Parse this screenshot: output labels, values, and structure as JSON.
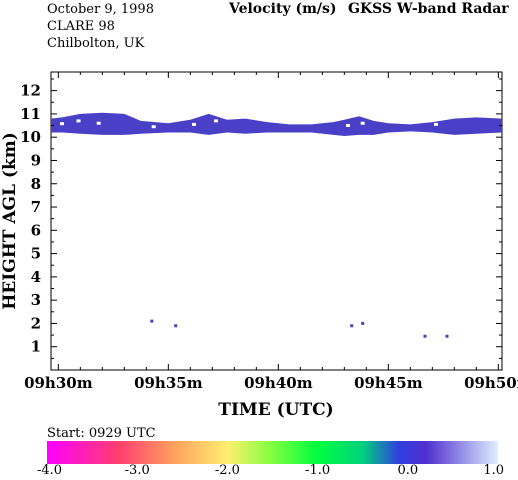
{
  "header": {
    "date": "October   9, 1998",
    "campaign": "CLARE 98",
    "site": "Chilbolton, UK",
    "quantity": "Velocity (m/s)",
    "instrument": "GKSS  W-band Radar"
  },
  "colorbar": {
    "start_label": "Start: 0929 UTC",
    "tick_labels": [
      "-4.0",
      "-3.0",
      "-2.0",
      "-1.0",
      "0.0",
      "1.0"
    ],
    "range": [
      -4.0,
      1.0
    ],
    "stops": [
      {
        "v": -4.0,
        "color": "#ff00ff"
      },
      {
        "v": -3.2,
        "color": "#ff3f6f"
      },
      {
        "v": -2.6,
        "color": "#ff9f5f"
      },
      {
        "v": -2.0,
        "color": "#ffef6f"
      },
      {
        "v": -1.5,
        "color": "#7fff3f"
      },
      {
        "v": -1.0,
        "color": "#00ff3f"
      },
      {
        "v": -0.5,
        "color": "#00cf7f"
      },
      {
        "v": -0.1,
        "color": "#2f3fdf"
      },
      {
        "v": 0.2,
        "color": "#4f2fcf"
      },
      {
        "v": 1.0,
        "color": "#dfefff"
      }
    ]
  },
  "chart_data": {
    "type": "heatmap",
    "title": "Velocity (m/s)",
    "xlabel": "TIME (UTC)",
    "ylabel": "HEIGHT AGL (km)",
    "xlim": [
      "09:29:40",
      "09:50:10"
    ],
    "ylim": [
      0.0,
      12.8
    ],
    "x_ticks": [
      "09h30m",
      "09h35m",
      "09h40m",
      "09h45m",
      "09h50m"
    ],
    "y_ticks": [
      "1",
      "2",
      "3",
      "4",
      "5",
      "6",
      "7",
      "8",
      "9",
      "10",
      "11",
      "12"
    ],
    "layer_color": "#4a40c8",
    "gap_color": "#ffffff",
    "cloud_layer": [
      {
        "t": "09:29:40",
        "base": 10.2,
        "top": 10.8
      },
      {
        "t": "09:30:10",
        "base": 10.2,
        "top": 10.85
      },
      {
        "t": "09:31:00",
        "base": 10.15,
        "top": 11.0
      },
      {
        "t": "09:32:00",
        "base": 10.1,
        "top": 11.05
      },
      {
        "t": "09:33:00",
        "base": 10.1,
        "top": 11.0
      },
      {
        "t": "09:33:45",
        "base": 10.15,
        "top": 10.7
      },
      {
        "t": "09:35:00",
        "base": 10.2,
        "top": 10.6
      },
      {
        "t": "09:36:00",
        "base": 10.2,
        "top": 10.75
      },
      {
        "t": "09:36:50",
        "base": 10.1,
        "top": 11.0
      },
      {
        "t": "09:37:40",
        "base": 10.2,
        "top": 10.75
      },
      {
        "t": "09:38:30",
        "base": 10.15,
        "top": 10.8
      },
      {
        "t": "09:39:30",
        "base": 10.2,
        "top": 10.65
      },
      {
        "t": "09:40:30",
        "base": 10.2,
        "top": 10.55
      },
      {
        "t": "09:41:30",
        "base": 10.2,
        "top": 10.55
      },
      {
        "t": "09:42:30",
        "base": 10.1,
        "top": 10.65
      },
      {
        "t": "09:43:00",
        "base": 10.05,
        "top": 10.75
      },
      {
        "t": "09:43:40",
        "base": 10.1,
        "top": 10.9
      },
      {
        "t": "09:44:20",
        "base": 10.1,
        "top": 10.7
      },
      {
        "t": "09:45:00",
        "base": 10.2,
        "top": 10.6
      },
      {
        "t": "09:46:00",
        "base": 10.25,
        "top": 10.55
      },
      {
        "t": "09:47:00",
        "base": 10.2,
        "top": 10.65
      },
      {
        "t": "09:48:00",
        "base": 10.1,
        "top": 10.8
      },
      {
        "t": "09:49:00",
        "base": 10.15,
        "top": 10.85
      },
      {
        "t": "09:50:10",
        "base": 10.2,
        "top": 10.8
      }
    ],
    "layer_gaps": [
      {
        "t": "09:30:10",
        "h": 10.58
      },
      {
        "t": "09:30:55",
        "h": 10.7
      },
      {
        "t": "09:31:50",
        "h": 10.6
      },
      {
        "t": "09:34:20",
        "h": 10.45
      },
      {
        "t": "09:36:10",
        "h": 10.55
      },
      {
        "t": "09:37:10",
        "h": 10.7
      },
      {
        "t": "09:43:10",
        "h": 10.5
      },
      {
        "t": "09:43:50",
        "h": 10.6
      },
      {
        "t": "09:47:10",
        "h": 10.55
      }
    ],
    "echoes": [
      {
        "t": "09:34:15",
        "h": 2.1
      },
      {
        "t": "09:35:20",
        "h": 1.9
      },
      {
        "t": "09:43:20",
        "h": 1.9
      },
      {
        "t": "09:43:50",
        "h": 2.0
      },
      {
        "t": "09:46:40",
        "h": 1.45
      },
      {
        "t": "09:47:40",
        "h": 1.45
      }
    ]
  }
}
